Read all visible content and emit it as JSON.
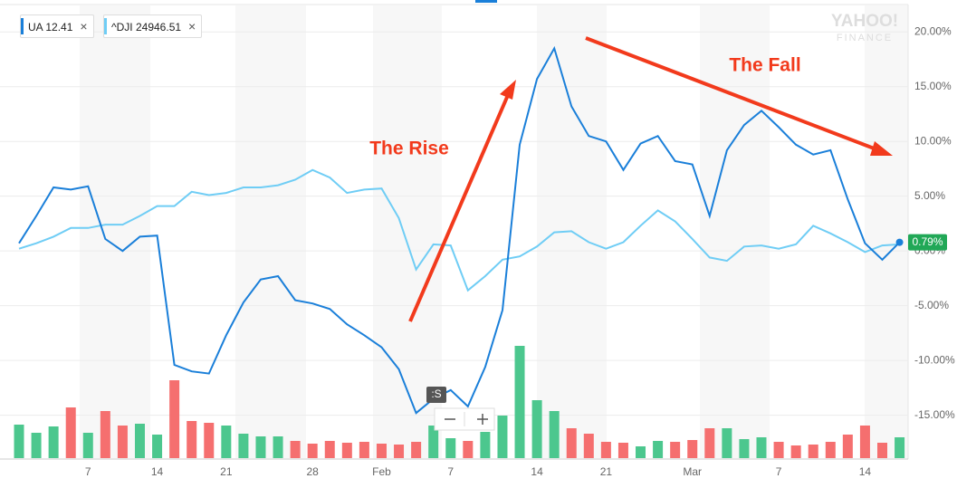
{
  "chart_data": {
    "type": "line",
    "annotations": [
      "The Rise",
      "The Fall"
    ],
    "watermark": [
      "YAHOO!",
      "FINANCE"
    ],
    "tag": ":S",
    "categories": [
      null,
      null,
      null,
      null,
      "7",
      null,
      null,
      null,
      "14",
      null,
      null,
      null,
      "21",
      null,
      null,
      null,
      null,
      "28",
      null,
      null,
      null,
      "Feb",
      null,
      null,
      null,
      "7",
      null,
      null,
      null,
      null,
      "14",
      null,
      null,
      null,
      "21",
      null,
      null,
      null,
      null,
      "Mar",
      null,
      null,
      null,
      null,
      "7",
      null,
      null,
      null,
      null,
      "14",
      null,
      null
    ],
    "series": [
      {
        "name": "UA",
        "price": 12.41,
        "color": "#1a7fd9",
        "values": [
          0.7,
          3.2,
          5.8,
          5.6,
          5.9,
          1.1,
          0.0,
          1.3,
          1.4,
          -10.4,
          -11.0,
          -11.2,
          -7.7,
          -4.7,
          -2.6,
          -2.3,
          -4.5,
          -4.8,
          -5.3,
          -6.7,
          -7.7,
          -8.8,
          -10.8,
          -14.8,
          -13.5,
          -12.7,
          -14.2,
          -10.6,
          -5.4,
          9.7,
          15.7,
          18.5,
          13.2,
          10.5,
          10.0,
          7.4,
          9.8,
          10.5,
          8.2,
          7.9,
          3.2,
          9.2,
          11.5,
          12.8,
          11.3,
          9.7,
          8.8,
          9.2,
          4.7,
          0.7,
          -0.8,
          0.79
        ],
        "value_labels": [
          null,
          null,
          null,
          null,
          null,
          null,
          null,
          null,
          null,
          null,
          null,
          null,
          null,
          null,
          null,
          null,
          null,
          null,
          null,
          null,
          null,
          null,
          null,
          null,
          null,
          null,
          null,
          null,
          null,
          null,
          null,
          null,
          null,
          null,
          null,
          null,
          null,
          null,
          null,
          null,
          null,
          null,
          null,
          null,
          null,
          null,
          null,
          null,
          null,
          null,
          null,
          "0.79%"
        ]
      },
      {
        "name": "^DJI",
        "price": 24946.51,
        "color": "#6fcdf5",
        "values": [
          0.2,
          0.7,
          1.3,
          2.1,
          2.1,
          2.4,
          2.4,
          3.2,
          4.1,
          4.1,
          5.4,
          5.1,
          5.3,
          5.8,
          5.8,
          6.0,
          6.5,
          7.4,
          6.7,
          5.3,
          5.6,
          5.7,
          3.0,
          -1.7,
          0.6,
          0.5,
          -3.6,
          -2.3,
          -0.8,
          -0.5,
          0.4,
          1.7,
          1.8,
          0.8,
          0.2,
          0.8,
          2.3,
          3.7,
          2.7,
          1.1,
          -0.6,
          -0.9,
          0.4,
          0.5,
          0.2,
          0.6,
          2.3,
          1.6,
          0.8,
          -0.1,
          0.5,
          0.6
        ]
      }
    ],
    "volume": {
      "values": [
        37,
        28,
        35,
        56,
        28,
        52,
        36,
        38,
        26,
        86,
        41,
        39,
        36,
        27,
        24,
        24,
        19,
        16,
        19,
        17,
        18,
        16,
        15,
        18,
        36,
        22,
        19,
        29,
        47,
        124,
        64,
        52,
        33,
        27,
        18,
        17,
        13,
        19,
        18,
        20,
        33,
        33,
        21,
        23,
        18,
        14,
        15,
        18,
        26,
        36,
        17,
        23
      ],
      "colors": [
        "g",
        "g",
        "g",
        "r",
        "g",
        "r",
        "r",
        "g",
        "g",
        "r",
        "r",
        "r",
        "g",
        "g",
        "g",
        "g",
        "r",
        "r",
        "r",
        "r",
        "r",
        "r",
        "r",
        "r",
        "g",
        "g",
        "r",
        "g",
        "g",
        "g",
        "g",
        "g",
        "r",
        "r",
        "r",
        "r",
        "g",
        "g",
        "r",
        "r",
        "r",
        "g",
        "g",
        "g",
        "r",
        "r",
        "r",
        "r",
        "r",
        "r",
        "r",
        "g"
      ],
      "palette": {
        "g": "#4cc78e",
        "r": "#f56f6f"
      },
      "ylim": [
        0,
        140
      ]
    },
    "ylim": [
      -19,
      22.5
    ],
    "yticks": [
      {
        "value": 20,
        "label": "20.00%"
      },
      {
        "value": 15,
        "label": "15.00%"
      },
      {
        "value": 10,
        "label": "10.00%"
      },
      {
        "value": 5,
        "label": "5.00%"
      },
      {
        "value": 0,
        "label": "0.00%"
      },
      {
        "value": -5,
        "label": "-5.00%"
      },
      {
        "value": -10,
        "label": "-10.00%"
      },
      {
        "value": -15,
        "label": "-15.00%"
      }
    ],
    "grid": true
  }
}
